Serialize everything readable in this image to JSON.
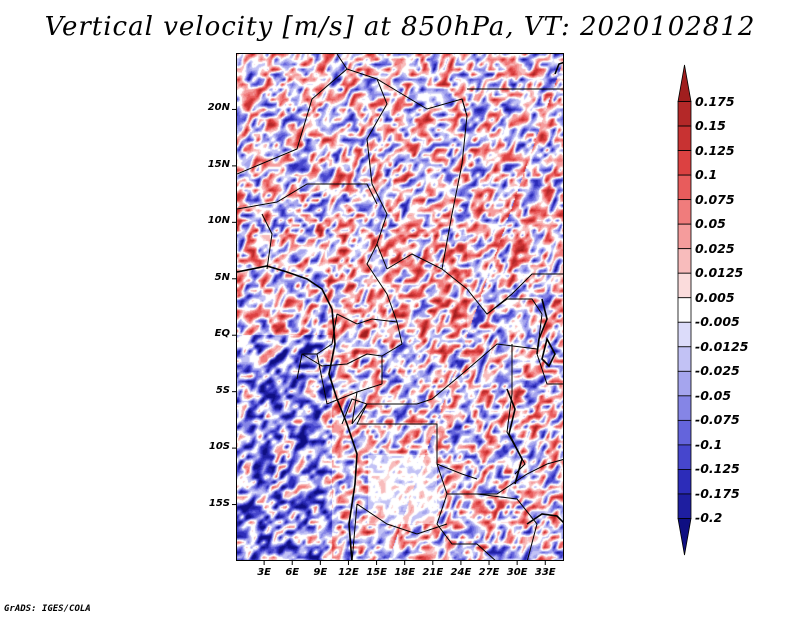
{
  "title": "Vertical velocity [m/s] at 850hPa, VT: 2020102812",
  "footer": "GrADS: IGES/COLA",
  "map": {
    "variable": "Vertical velocity",
    "units": "m/s",
    "level": "850hPa",
    "valid_time": "2020102812",
    "lon_range": [
      0,
      35
    ],
    "lat_range": [
      -20,
      25
    ],
    "lat_labels": [
      "20N",
      "15N",
      "10N",
      "5N",
      "EQ",
      "5S",
      "10S",
      "15S"
    ],
    "lat_values": [
      20,
      15,
      10,
      5,
      0,
      -5,
      -10,
      -15
    ],
    "lon_labels": [
      "3E",
      "6E",
      "9E",
      "12E",
      "15E",
      "18E",
      "21E",
      "24E",
      "27E",
      "30E",
      "33E"
    ],
    "lon_values": [
      3,
      6,
      9,
      12,
      15,
      18,
      21,
      24,
      27,
      30,
      33
    ]
  },
  "colorbar": {
    "labels": [
      "0.175",
      "0.15",
      "0.125",
      "0.1",
      "0.075",
      "0.05",
      "0.025",
      "0.0125",
      "0.005",
      "-0.005",
      "-0.0125",
      "-0.025",
      "-0.05",
      "-0.075",
      "-0.1",
      "-0.125",
      "-0.175",
      "-0.2"
    ],
    "colors": [
      "#a01e1e",
      "#b42828",
      "#c83232",
      "#dc4141",
      "#e85c5c",
      "#f07c7c",
      "#f59c9c",
      "#f8bcbc",
      "#fbdcdc",
      "#ffffff",
      "#dcdcfa",
      "#c2c2f5",
      "#a5a5ee",
      "#8585e6",
      "#6464dc",
      "#4646cd",
      "#2c2cb9",
      "#1e1ea0",
      "#0f0f82"
    ]
  }
}
